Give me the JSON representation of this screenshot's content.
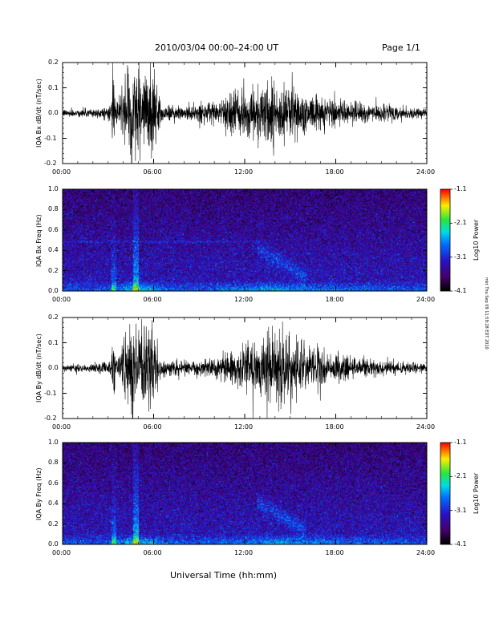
{
  "header": {
    "title": "2010/03/04  00:00–24:00 UT",
    "page": "Page 1/1"
  },
  "footer": {
    "xlabel": "Universal Time (hh:mm)",
    "side_note": "mkt Thu Sep 09 11:59:28 EDT 2010"
  },
  "x_ticks": [
    "00:00",
    "06:00",
    "12:00",
    "18:00",
    "24:00"
  ],
  "colorbar": {
    "label": "Log10 Power",
    "ticks": [
      "-1.1",
      "-2.1",
      "-3.1",
      "-4.1"
    ]
  },
  "panels": [
    {
      "name": "bx-timeseries",
      "ylabel": "IQA Bx dB/dt (nT/sec)",
      "yticks": [
        "0.2",
        "0.1",
        "0.0",
        "-0.1",
        "-0.2"
      ],
      "color": "#000000"
    },
    {
      "name": "bx-spectrogram",
      "ylabel": "IQA Bx Freq (Hz)",
      "yticks": [
        "1.0",
        "0.8",
        "0.6",
        "0.4",
        "0.2",
        "0.0"
      ]
    },
    {
      "name": "by-timeseries",
      "ylabel": "IQA By dB/dt (nT/sec)",
      "yticks": [
        "0.2",
        "0.1",
        "0.0",
        "-0.1",
        "-0.2"
      ],
      "color": "#000000"
    },
    {
      "name": "by-spectrogram",
      "ylabel": "IQA By Freq (Hz)",
      "yticks": [
        "1.0",
        "0.8",
        "0.6",
        "0.4",
        "0.2",
        "0.0"
      ]
    }
  ],
  "chart_data": [
    {
      "type": "line",
      "title": "2010/03/04  00:00–24:00 UT",
      "xlabel": "Universal Time (hh:mm)",
      "ylabel": "IQA Bx dB/dt (nT/sec)",
      "xlim": [
        "00:00",
        "24:00"
      ],
      "ylim": [
        -0.2,
        0.2
      ],
      "envelope": {
        "x_hours": [
          0,
          2,
          3.2,
          3.3,
          3.5,
          4.5,
          5.0,
          5.8,
          6.5,
          8,
          10,
          11.0,
          12.0,
          13.0,
          14.0,
          15.0,
          16.0,
          17.0,
          18.0,
          20.0,
          22.0,
          24.0
        ],
        "amplitude": [
          0.015,
          0.02,
          0.03,
          0.2,
          0.03,
          0.2,
          0.2,
          0.2,
          0.04,
          0.03,
          0.04,
          0.08,
          0.1,
          0.13,
          0.15,
          0.12,
          0.09,
          0.07,
          0.06,
          0.04,
          0.03,
          0.02
        ]
      }
    },
    {
      "type": "heatmap",
      "ylabel": "IQA Bx Freq (Hz)",
      "xlim": [
        "00:00",
        "24:00"
      ],
      "ylim": [
        0.0,
        1.0
      ],
      "zlabel": "Log10 Power",
      "zlim": [
        -4.1,
        -1.1
      ]
    },
    {
      "type": "line",
      "ylabel": "IQA By dB/dt (nT/sec)",
      "xlim": [
        "00:00",
        "24:00"
      ],
      "ylim": [
        -0.2,
        0.2
      ],
      "envelope": {
        "x_hours": [
          0,
          2,
          3.2,
          3.3,
          3.5,
          4.5,
          5.0,
          5.8,
          6.5,
          8,
          10,
          11.0,
          12.0,
          13.0,
          14.0,
          15.0,
          16.0,
          17.0,
          18.0,
          20.0,
          22.0,
          24.0
        ],
        "amplitude": [
          0.015,
          0.02,
          0.03,
          0.2,
          0.03,
          0.2,
          0.2,
          0.2,
          0.04,
          0.03,
          0.04,
          0.07,
          0.1,
          0.12,
          0.16,
          0.13,
          0.1,
          0.08,
          0.06,
          0.04,
          0.03,
          0.02
        ]
      }
    },
    {
      "type": "heatmap",
      "ylabel": "IQA By Freq (Hz)",
      "xlim": [
        "00:00",
        "24:00"
      ],
      "ylim": [
        0.0,
        1.0
      ],
      "zlabel": "Log10 Power",
      "zlim": [
        -4.1,
        -1.1
      ]
    }
  ]
}
